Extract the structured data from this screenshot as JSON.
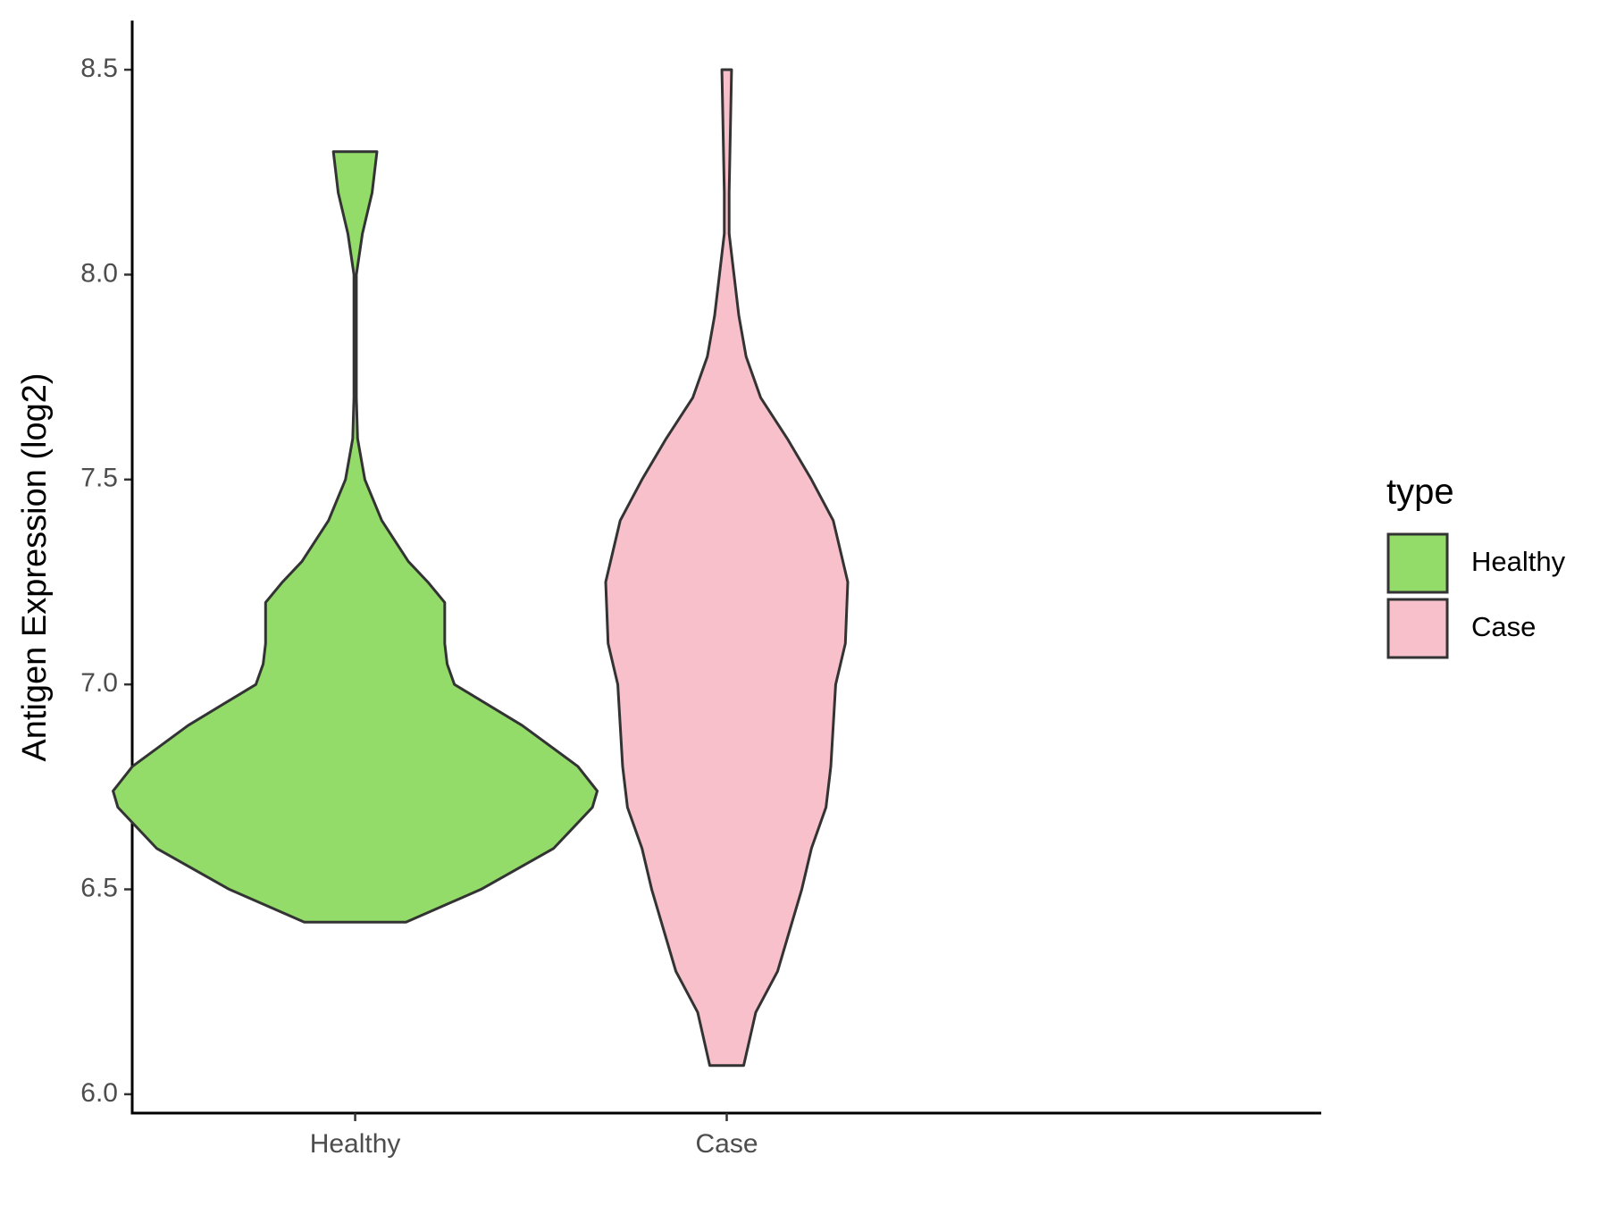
{
  "chart_data": {
    "type": "violin",
    "y_label": "Antigen Expression (log2)",
    "categories": [
      "Healthy",
      "Case"
    ],
    "legend_title": "type",
    "ylim": [
      5.954,
      8.62
    ],
    "yticks": [
      {
        "value": 6,
        "label": "6.0"
      },
      6.5,
      {
        "value": 7,
        "label": "7.0"
      },
      7.5,
      {
        "value": 8,
        "label": "8.0"
      },
      8.5
    ],
    "series": [
      {
        "name": "Healthy",
        "color": "#93dc6a",
        "y": [
          6.42,
          6.5,
          6.6,
          6.7,
          6.74,
          6.8,
          6.9,
          7.0,
          7.05,
          7.1,
          7.2,
          7.25,
          7.3,
          7.4,
          7.5,
          7.6,
          7.7,
          8.0,
          8.1,
          8.2,
          8.3
        ],
        "density": [
          0.21,
          0.52,
          0.82,
          0.98,
          1,
          0.92,
          0.69,
          0.41,
          0.38,
          0.37,
          0.37,
          0.3,
          0.22,
          0.11,
          0.04,
          0.01,
          0.005,
          0.005,
          0.03,
          0.07,
          0.09
        ]
      },
      {
        "name": "Case",
        "color": "#f7c0cb",
        "y": [
          6.07,
          6.2,
          6.3,
          6.4,
          6.5,
          6.6,
          6.7,
          6.8,
          6.9,
          7.0,
          7.1,
          7.25,
          7.4,
          7.5,
          7.6,
          7.7,
          7.8,
          7.9,
          8.0,
          8.1,
          8.2,
          8.5
        ],
        "density": [
          0.07,
          0.12,
          0.21,
          0.26,
          0.31,
          0.35,
          0.41,
          0.43,
          0.44,
          0.45,
          0.49,
          0.5,
          0.44,
          0.35,
          0.25,
          0.14,
          0.08,
          0.05,
          0.03,
          0.01,
          0.01,
          0.02
        ]
      }
    ]
  }
}
